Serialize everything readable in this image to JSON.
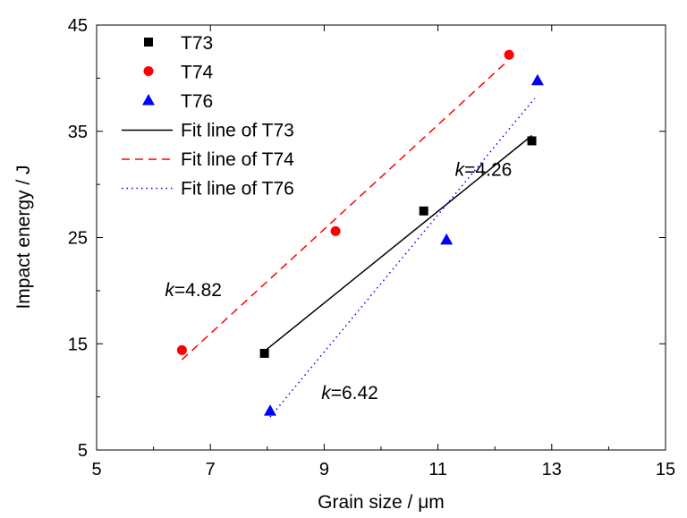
{
  "chart_data": {
    "type": "scatter",
    "xlabel": "Grain size / μm",
    "ylabel": "Impact energy / J",
    "xlim": [
      5,
      15
    ],
    "ylim": [
      5,
      45
    ],
    "xticks": [
      "5",
      "7",
      "9",
      "11",
      "13",
      "15"
    ],
    "yticks": [
      "5",
      "15",
      "25",
      "35",
      "45"
    ],
    "grid": false,
    "legend_position": "top-left",
    "series": [
      {
        "name": "T73",
        "marker": "square",
        "color": "#000000",
        "x": [
          7.95,
          10.75,
          12.65
        ],
        "y": [
          14.1,
          27.5,
          34.1
        ]
      },
      {
        "name": "T74",
        "marker": "circle",
        "color": "#ff0000",
        "x": [
          6.5,
          9.2,
          12.25
        ],
        "y": [
          14.4,
          25.6,
          42.2
        ]
      },
      {
        "name": "T76",
        "marker": "triangle",
        "color": "#0000ff",
        "x": [
          8.05,
          11.15,
          12.75
        ],
        "y": [
          8.7,
          24.8,
          39.8
        ]
      }
    ],
    "fit_lines": [
      {
        "name": "Fit line of T73",
        "style": "solid",
        "color": "#000000",
        "x": [
          7.95,
          12.65
        ],
        "y": [
          14.3,
          34.6
        ]
      },
      {
        "name": "Fit line of T74",
        "style": "dashed",
        "color": "#ff0000",
        "x": [
          6.5,
          12.2
        ],
        "y": [
          13.5,
          41.5
        ]
      },
      {
        "name": "Fit line of T76",
        "style": "dotted",
        "color": "#0000ff",
        "x": [
          8.05,
          12.7
        ],
        "y": [
          8.1,
          38.1
        ]
      }
    ],
    "annotations": [
      {
        "k": "k",
        "value": "=4.26",
        "x": 11.3,
        "y": 30.8
      },
      {
        "k": "k",
        "value": "=4.82",
        "x": 6.2,
        "y": 19.5
      },
      {
        "k": "k",
        "value": "=6.42",
        "x": 8.95,
        "y": 9.8
      }
    ]
  }
}
